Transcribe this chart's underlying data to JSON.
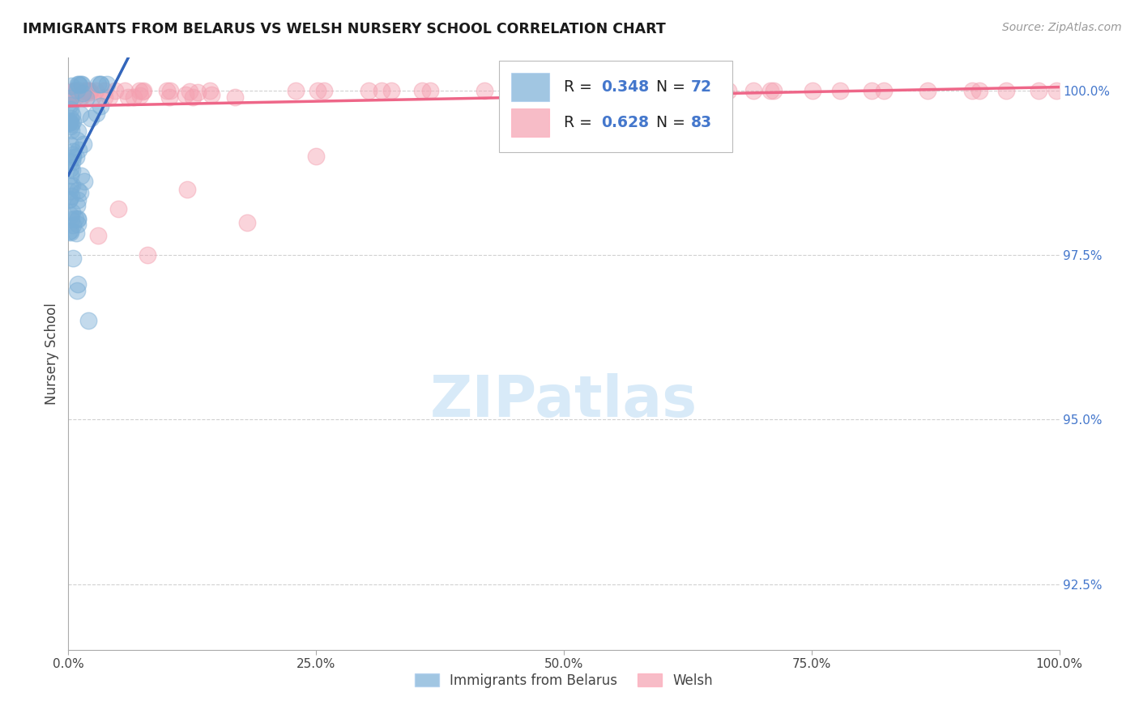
{
  "title": "IMMIGRANTS FROM BELARUS VS WELSH NURSERY SCHOOL CORRELATION CHART",
  "source": "Source: ZipAtlas.com",
  "ylabel": "Nursery School",
  "ytick_labels": [
    "92.5%",
    "95.0%",
    "97.5%",
    "100.0%"
  ],
  "ytick_values": [
    0.925,
    0.95,
    0.975,
    1.0
  ],
  "xtick_labels": [
    "0.0%",
    "25.0%",
    "50.0%",
    "75.0%",
    "100.0%"
  ],
  "xtick_values": [
    0.0,
    0.25,
    0.5,
    0.75,
    1.0
  ],
  "legend_label_blue": "Immigrants from Belarus",
  "legend_label_pink": "Welsh",
  "blue_color": "#7aaed6",
  "pink_color": "#f4a0b0",
  "blue_line_color": "#3366BB",
  "pink_line_color": "#EE6688",
  "text_blue_color": "#4477CC",
  "watermark_color": "#D8EAF8",
  "background_color": "#FFFFFF",
  "ylim_low": 0.915,
  "ylim_high": 1.005,
  "xlim_low": 0.0,
  "xlim_high": 1.0,
  "r_blue": 0.348,
  "n_blue": 72,
  "r_pink": 0.628,
  "n_pink": 83
}
